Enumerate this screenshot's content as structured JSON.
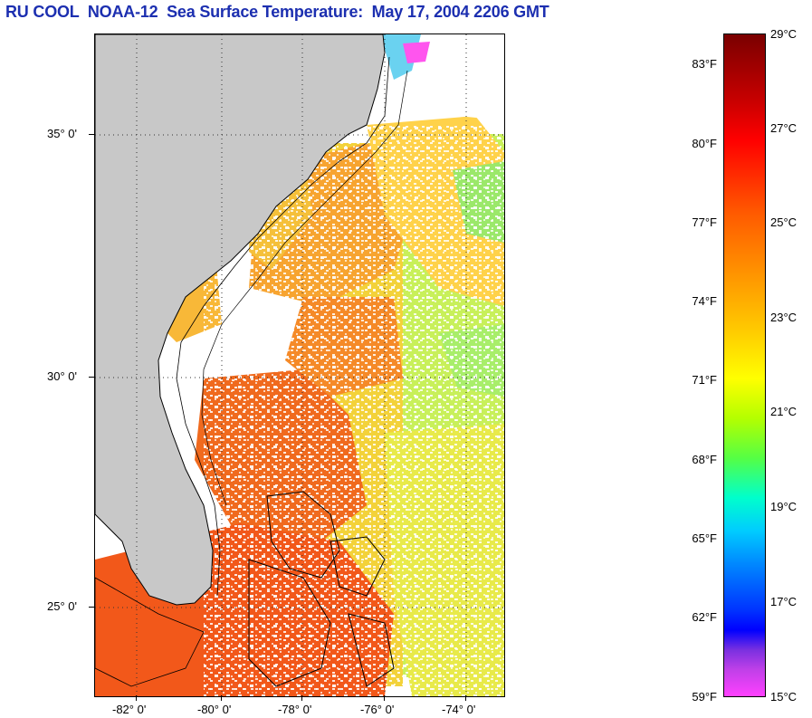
{
  "title": "RU COOL  NOAA-12  Sea Surface Temperature:  May 17, 2004 2206 GMT",
  "map": {
    "lat_labels": [
      "35° 0'",
      "30° 0'",
      "25° 0'"
    ],
    "lon_labels": [
      "-82° 0'",
      "-80° 0'",
      "-78° 0'",
      "-76° 0'",
      "-74° 0'"
    ]
  },
  "colorbar": {
    "fahrenheit_labels": [
      "83°F",
      "80°F",
      "77°F",
      "74°F",
      "71°F",
      "68°F",
      "65°F",
      "62°F",
      "59°F"
    ],
    "celsius_labels": [
      "29°C",
      "27°C",
      "25°C",
      "23°C",
      "21°C",
      "19°C",
      "17°C",
      "15°C"
    ]
  }
}
